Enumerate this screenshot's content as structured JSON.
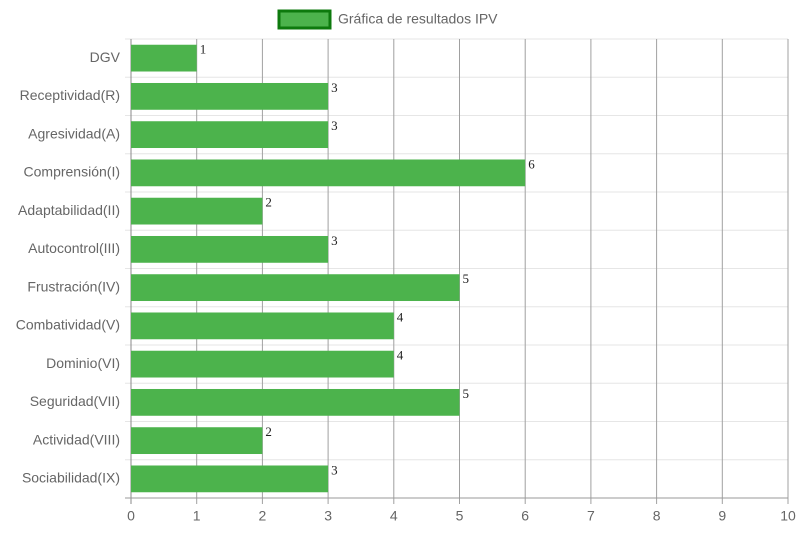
{
  "chart_data": {
    "type": "bar",
    "orientation": "horizontal",
    "categories": [
      "DGV",
      "Receptividad(R)",
      "Agresividad(A)",
      "Comprensión(I)",
      "Adaptabilidad(II)",
      "Autocontrol(III)",
      "Frustración(IV)",
      "Combatividad(V)",
      "Dominio(VI)",
      "Seguridad(VII)",
      "Actividad(VIII)",
      "Sociabilidad(IX)"
    ],
    "series": [
      {
        "name": "Gráfica de resultados IPV",
        "color": "#4cb34c",
        "border_color": "#0d7a0d",
        "values": [
          1,
          3,
          3,
          6,
          2,
          3,
          5,
          4,
          4,
          5,
          2,
          3
        ]
      }
    ],
    "xlim": [
      0,
      10
    ],
    "xticks": [
      0,
      1,
      2,
      3,
      4,
      5,
      6,
      7,
      8,
      9,
      10
    ],
    "grid": true,
    "legend": "top"
  }
}
